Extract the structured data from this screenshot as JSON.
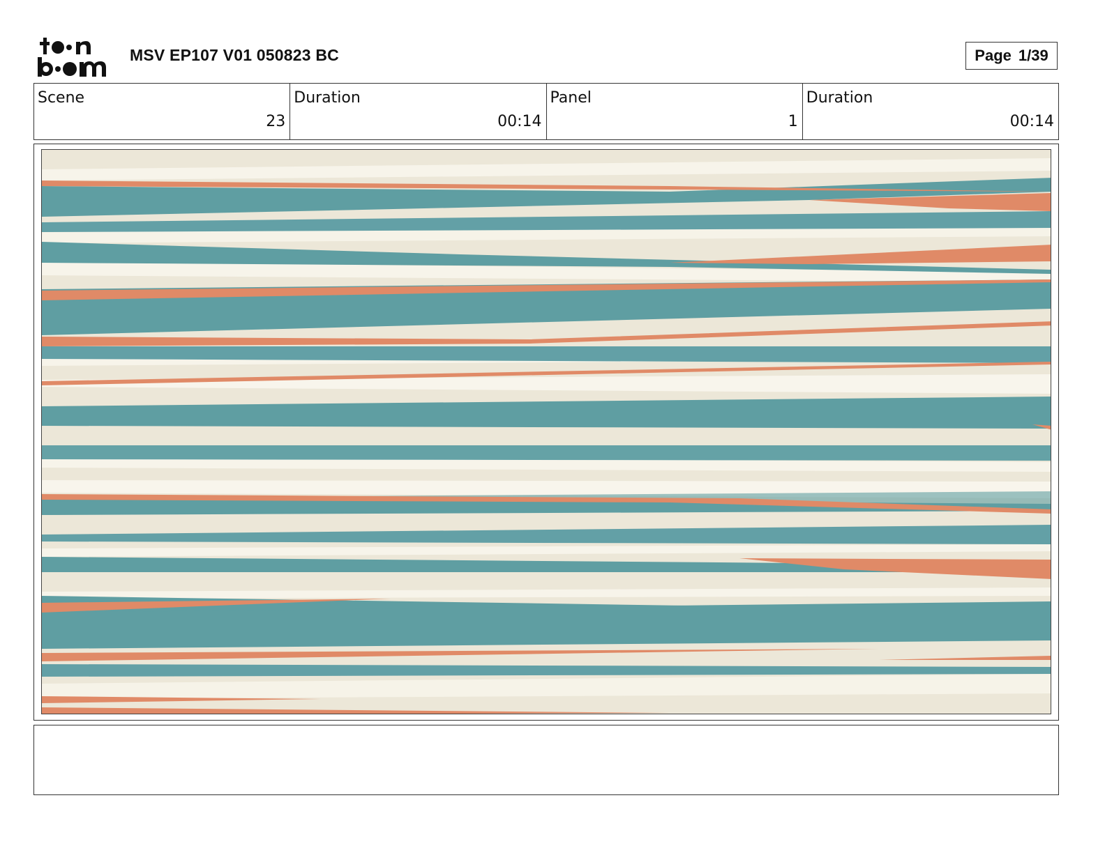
{
  "header": {
    "logo_text": "toon boom",
    "title": "MSV EP107 V01 050823 BC",
    "page_label": "Page",
    "page_value": "1/39"
  },
  "info": {
    "scene_label": "Scene",
    "scene_value": "23",
    "scene_duration_label": "Duration",
    "scene_duration_value": "00:14",
    "panel_label": "Panel",
    "panel_value": "1",
    "panel_duration_label": "Duration",
    "panel_duration_value": "00:14"
  },
  "panel": {
    "colors": {
      "cream": "#ece7d8",
      "teal": "#5f9ea2",
      "orange": "#e08a67",
      "white": "#f7f4ea"
    }
  },
  "notes": {
    "text": ""
  }
}
